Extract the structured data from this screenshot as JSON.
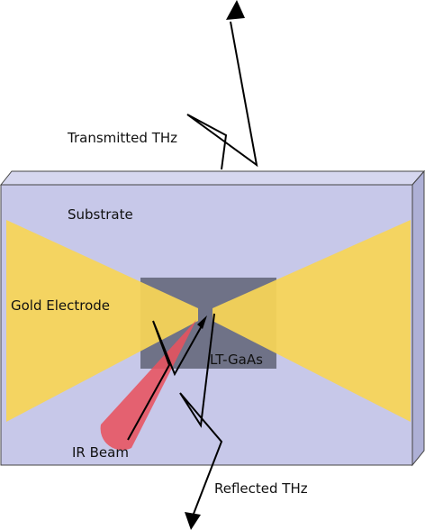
{
  "labels": {
    "transmitted": "Transmitted THz",
    "substrate": "Substrate",
    "gold_electrode": "Gold Electrode",
    "lt_gaas": "LT-GaAs",
    "ir_beam": "IR Beam",
    "reflected": "Reflected THz"
  },
  "colors": {
    "substrate_front": "#c7c8e9",
    "substrate_side": "#aeb0d6",
    "substrate_top": "#d6d7ef",
    "gold": "#f7d556",
    "lt_gaas": "#6f7287",
    "ir_beam": "#e8525f",
    "line": "#000000"
  }
}
